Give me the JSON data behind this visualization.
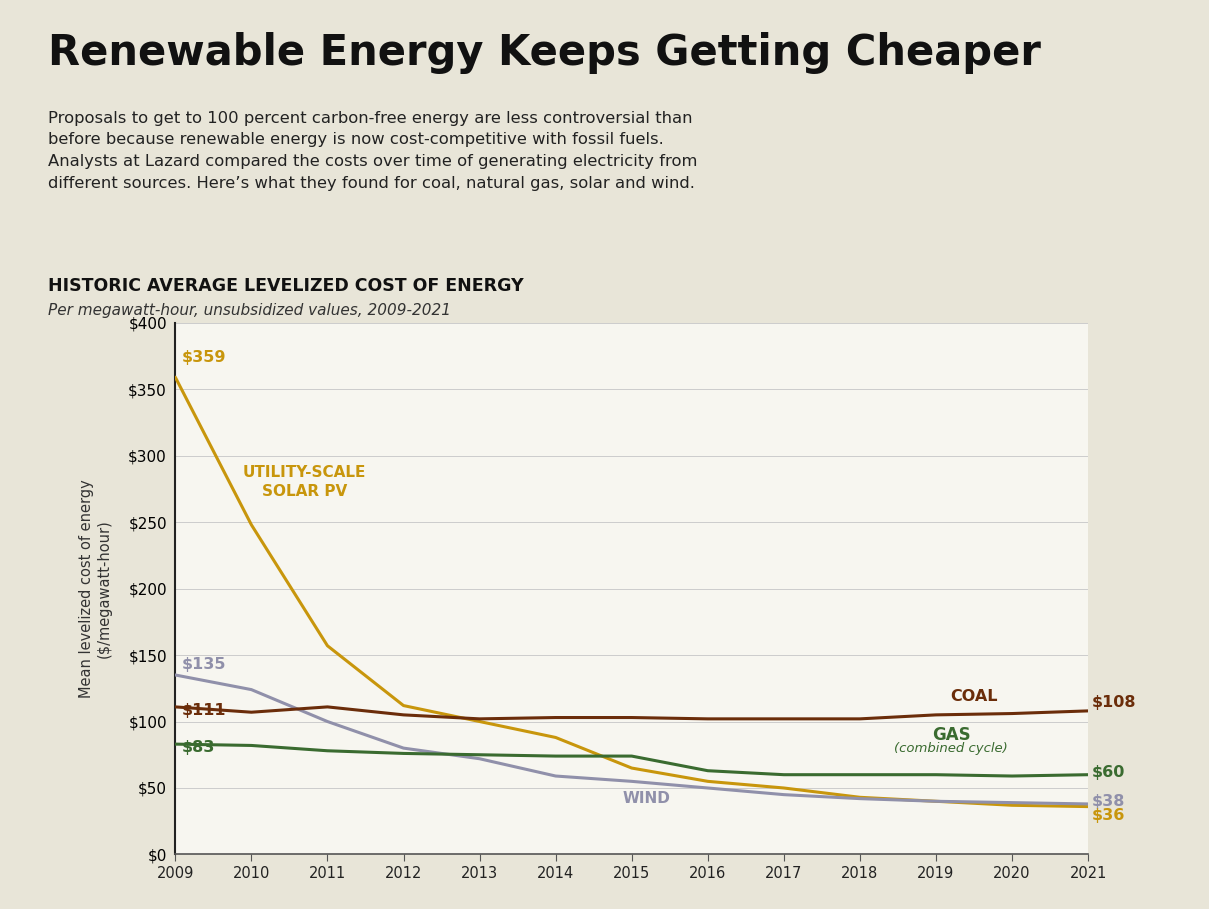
{
  "title": "Renewable Energy Keeps Getting Cheaper",
  "subtitle": "Proposals to get to 100 percent carbon-free energy are less controversial than\nbefore because renewable energy is now cost-competitive with fossil fuels.\nAnalysts at Lazard compared the costs over time of generating electricity from\ndifferent sources. Here’s what they found for coal, natural gas, solar and wind.",
  "chart_title": "HISTORIC AVERAGE LEVELIZED COST OF ENERGY",
  "chart_subtitle": "Per megawatt-hour, unsubsidized values, 2009-2021",
  "ylabel": "Mean levelized cost of energy\n($/megawatt-hour)",
  "background_color": "#e8e5d8",
  "plot_background_color": "#f7f6f0",
  "years": [
    2009,
    2010,
    2011,
    2012,
    2013,
    2014,
    2015,
    2016,
    2017,
    2018,
    2019,
    2020,
    2021
  ],
  "solar": [
    359,
    248,
    157,
    112,
    100,
    88,
    65,
    55,
    50,
    43,
    40,
    37,
    36
  ],
  "wind": [
    135,
    124,
    100,
    80,
    72,
    59,
    55,
    50,
    45,
    42,
    40,
    39,
    38
  ],
  "coal": [
    111,
    107,
    111,
    105,
    102,
    103,
    103,
    102,
    102,
    102,
    105,
    106,
    108
  ],
  "gas": [
    83,
    82,
    78,
    76,
    75,
    74,
    74,
    63,
    60,
    60,
    60,
    59,
    60
  ],
  "solar_color": "#c8960c",
  "wind_color": "#9090aa",
  "coal_color": "#6b2d0a",
  "gas_color": "#3a6b30",
  "ylim": [
    0,
    400
  ],
  "yticks": [
    0,
    50,
    100,
    150,
    200,
    250,
    300,
    350,
    400
  ]
}
